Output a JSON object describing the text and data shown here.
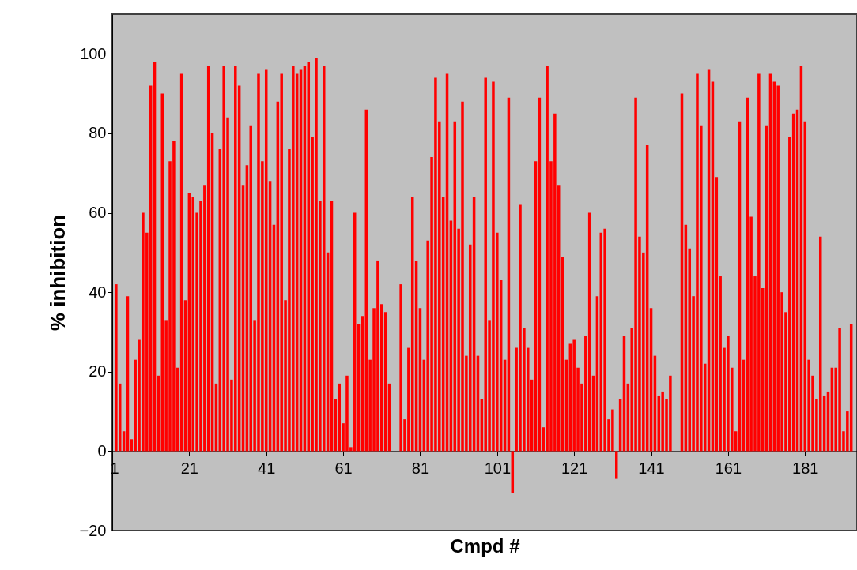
{
  "chart_data": {
    "type": "bar",
    "xlabel": "Cmpd #",
    "ylabel": "% inhibition",
    "color": "#ff0000",
    "grid": false,
    "xlim": [
      1,
      194.5
    ],
    "xticks": [
      1,
      21,
      41,
      61,
      81,
      101,
      121,
      141,
      161,
      181
    ],
    "ylim": [
      -20,
      110
    ],
    "yticks": [
      -20,
      0,
      20,
      40,
      60,
      80,
      100
    ],
    "x": [
      2,
      3,
      4,
      5,
      6,
      7,
      8,
      9,
      10,
      11,
      12,
      13,
      14,
      15,
      16,
      17,
      18,
      19,
      20,
      21,
      22,
      23,
      24,
      25,
      26,
      27,
      28,
      29,
      30,
      31,
      32,
      33,
      34,
      35,
      36,
      37,
      38,
      39,
      40,
      41,
      42,
      43,
      44,
      45,
      46,
      47,
      48,
      49,
      50,
      51,
      52,
      53,
      54,
      55,
      56,
      57,
      58,
      59,
      60,
      61,
      62,
      63,
      64,
      65,
      66,
      67,
      68,
      69,
      70,
      71,
      72,
      73,
      74,
      75,
      76,
      77,
      78,
      79,
      80,
      81,
      82,
      83,
      84,
      85,
      86,
      87,
      88,
      89,
      90,
      91,
      92,
      93,
      94,
      95,
      96,
      97,
      98,
      99,
      100,
      101,
      102,
      103,
      104,
      105,
      106,
      107,
      108,
      109,
      110,
      111,
      112,
      113,
      114,
      115,
      116,
      117,
      118,
      119,
      120,
      121,
      122,
      123,
      124,
      125,
      126,
      127,
      128,
      129,
      130,
      131,
      132,
      133,
      134,
      135,
      136,
      137,
      138,
      139,
      140,
      141,
      142,
      143,
      144,
      145,
      146,
      147,
      148,
      149,
      150,
      151,
      152,
      153,
      154,
      155,
      156,
      157,
      158,
      159,
      160,
      161,
      162,
      163,
      164,
      165,
      166,
      167,
      168,
      169,
      170,
      171,
      172,
      173,
      174,
      175,
      176,
      177,
      178,
      179,
      180,
      181,
      182,
      183,
      184,
      185,
      186,
      187,
      188,
      189,
      190,
      191,
      192,
      193
    ],
    "values": [
      42,
      17,
      5,
      39,
      3,
      23,
      28,
      60,
      55,
      92,
      98,
      19,
      90,
      33,
      73,
      78,
      21,
      95,
      38,
      65,
      64,
      60,
      63,
      67,
      97,
      80,
      17,
      76,
      97,
      84,
      18,
      97,
      92,
      67,
      72,
      82,
      33,
      95,
      73,
      96,
      68,
      57,
      88,
      95,
      38,
      76,
      97,
      95,
      96,
      97,
      98,
      79,
      99,
      63,
      97,
      50,
      63,
      13,
      17,
      7,
      19,
      1,
      60,
      32,
      34,
      86,
      23,
      36,
      48,
      37,
      35,
      17,
      null,
      null,
      42,
      8,
      26,
      64,
      48,
      36,
      23,
      53,
      74,
      94,
      83,
      64,
      95,
      58,
      83,
      56,
      88,
      24,
      52,
      64,
      24,
      13,
      94,
      33,
      93,
      55,
      43,
      23,
      89,
      -10.5,
      26,
      62,
      31,
      26,
      18,
      73,
      89,
      6,
      97,
      73,
      85,
      67,
      49,
      23,
      27,
      28,
      21,
      17,
      29,
      60,
      19,
      39,
      55,
      56,
      8,
      10.5,
      -7,
      13,
      29,
      17,
      31,
      89,
      54,
      50,
      77,
      36,
      24,
      14,
      15,
      13,
      19,
      null,
      null,
      90,
      57,
      51,
      39,
      95,
      82,
      22,
      96,
      93,
      69,
      44,
      26,
      29,
      21,
      5,
      83,
      23,
      89,
      59,
      44,
      95,
      41,
      82,
      95,
      93,
      92,
      40,
      35,
      79,
      85,
      86,
      97,
      83,
      23,
      19,
      13,
      54,
      14,
      15,
      21,
      21,
      31,
      5,
      10,
      32
    ]
  }
}
